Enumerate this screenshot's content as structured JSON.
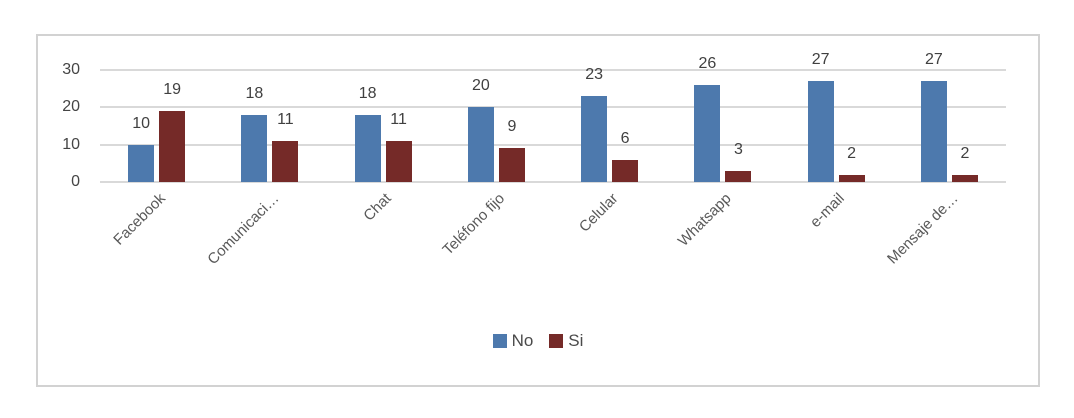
{
  "chart_data": {
    "type": "bar",
    "title": "",
    "xlabel": "",
    "ylabel": "",
    "categories": [
      "Facebook",
      "Comunicaci…",
      "Chat",
      "Teléfono fijo",
      "Celular",
      "Whatsapp",
      "e-mail",
      "Mensaje de…"
    ],
    "series": [
      {
        "name": "No",
        "color": "#4d79ad",
        "values": [
          10,
          18,
          18,
          20,
          23,
          26,
          27,
          27
        ]
      },
      {
        "name": "Si",
        "color": "#752a28",
        "values": [
          19,
          11,
          11,
          9,
          6,
          3,
          2,
          2
        ]
      }
    ],
    "y_ticks": [
      0,
      10,
      20,
      30
    ],
    "ylim": [
      0,
      30
    ],
    "grid": true,
    "legend_position": "bottom",
    "gridline_color": "#d9d9d9",
    "frame_border_color": "#d2d2d2"
  }
}
